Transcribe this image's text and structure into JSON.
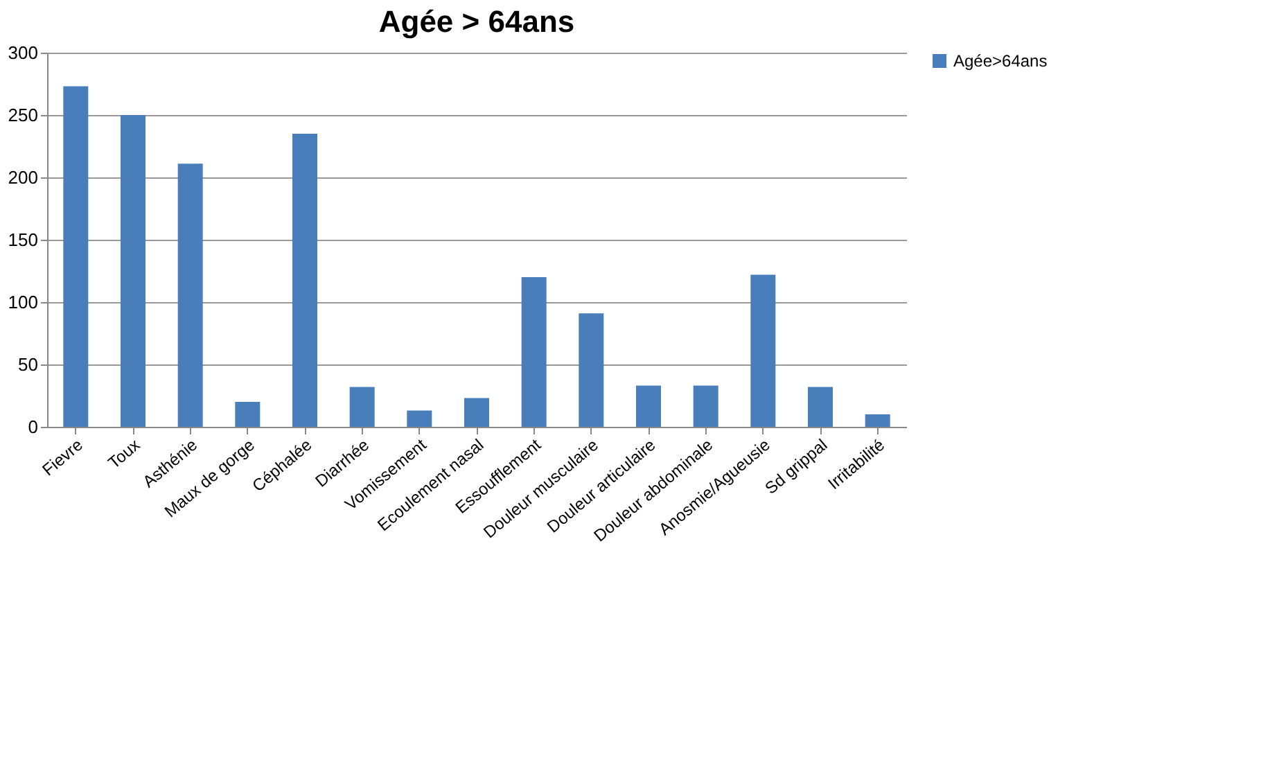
{
  "chart_data": {
    "type": "bar",
    "title": "Agée > 64ans",
    "categories": [
      "Fievre",
      "Toux",
      "Asthénie",
      "Maux de gorge",
      "Céphalée",
      "Diarrhée",
      "Vomissement",
      "Ecoulement nasal",
      "Essoufflement",
      "Douleur musculaire",
      "Douleur articulaire",
      "Douleur abdominale",
      "Anosmie/Agueusie",
      "Sd grippal",
      "Irritabilité"
    ],
    "series": [
      {
        "name": "Agée>64ans",
        "color": "#4a7ebb",
        "values": [
          273,
          250,
          211,
          20,
          235,
          32,
          13,
          23,
          120,
          91,
          33,
          33,
          122,
          32,
          10
        ]
      }
    ],
    "ylim": [
      0,
      300
    ],
    "yticks": [
      0,
      50,
      100,
      150,
      200,
      250,
      300
    ],
    "grid": "y",
    "legend": "right"
  }
}
